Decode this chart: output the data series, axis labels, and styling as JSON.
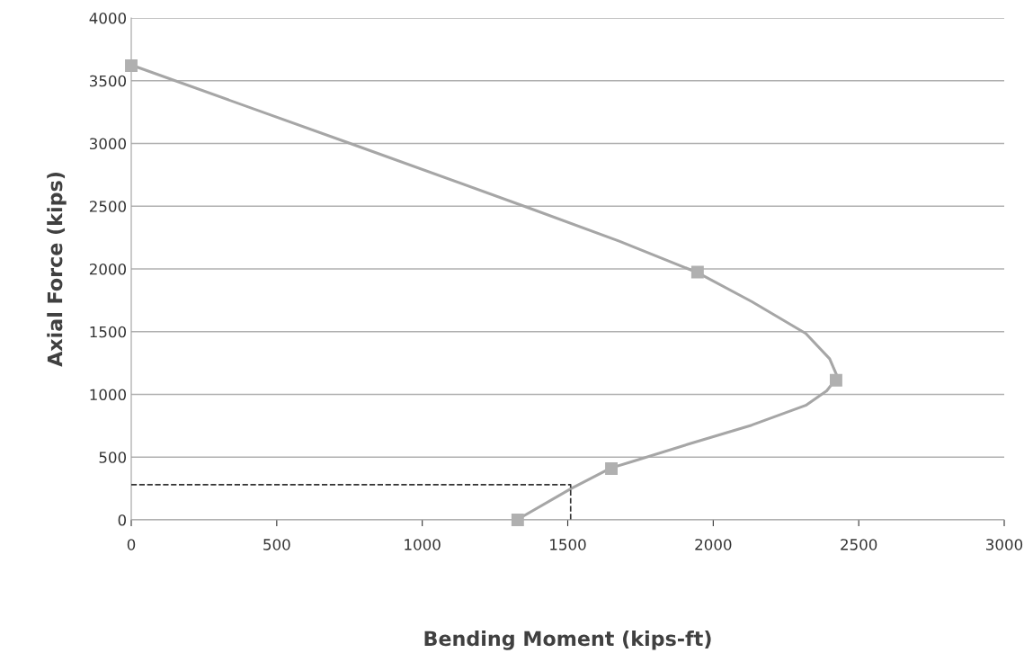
{
  "chart_data": {
    "type": "line",
    "xlabel": "Bending Moment (kips-ft)",
    "ylabel": "Axial Force (kips)",
    "x": [
      0,
      746,
      1367,
      1677,
      1946,
      2132,
      2318,
      2400,
      2427,
      2390,
      2318,
      2132,
      1925,
      1718,
      1648,
      1512,
      1325
    ],
    "series": [
      {
        "color": "#a6a6a6",
        "values": [
          3625,
          3005,
          2486,
          2221,
          1971,
          1740,
          1486,
          1284,
          1139,
          1029,
          913,
          755,
          611,
          462,
          413,
          250,
          0
        ]
      },
      {
        "type": "scatter",
        "marker": "square",
        "color": "#b0b0b0",
        "x": [
          0,
          1946,
          2422,
          1650,
          1328
        ],
        "values": [
          3620,
          1975,
          1113,
          409,
          0
        ]
      },
      {
        "color": "#333333",
        "line_style": "dashed",
        "x": [
          0,
          1510,
          1510
        ],
        "values": [
          280,
          280,
          0
        ]
      }
    ],
    "xlim": [
      0,
      3000
    ],
    "xticks": [
      0,
      500,
      1000,
      1500,
      2000,
      2500,
      3000
    ],
    "ylim": [
      0,
      4000
    ],
    "yticks": [
      0,
      500,
      1000,
      1500,
      2000,
      2500,
      3000,
      3500,
      4000
    ],
    "grid": "y",
    "line_style": "solid"
  }
}
